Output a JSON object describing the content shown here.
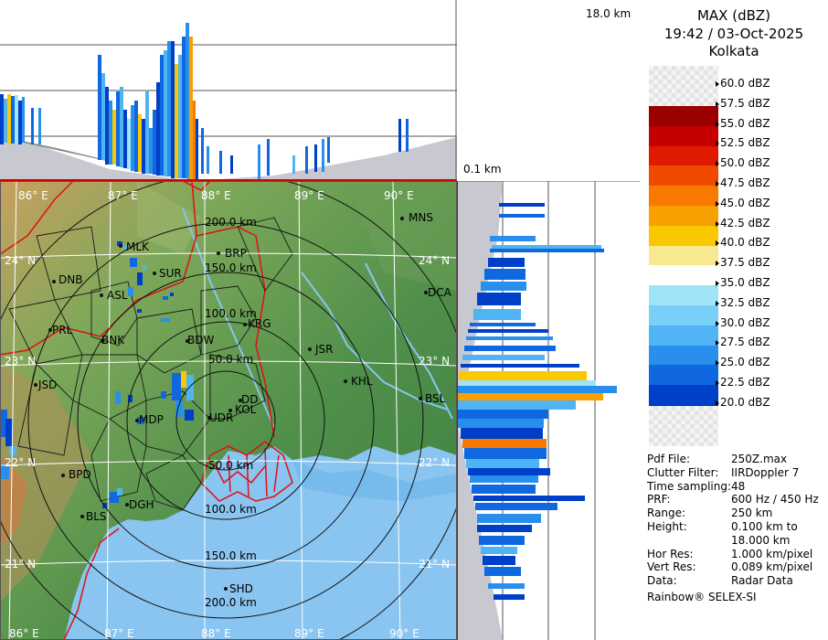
{
  "header": {
    "product": "MAX (dBZ)",
    "datetime": "19:42 / 03-Oct-2025",
    "station": "Kolkata"
  },
  "profile_labels": {
    "top_height": "18.0 km",
    "bottom_height": "0.1 km"
  },
  "colorbar": {
    "labels": [
      "60.0 dBZ",
      "57.5 dBZ",
      "55.0 dBZ",
      "52.5 dBZ",
      "50.0 dBZ",
      "47.5 dBZ",
      "45.0 dBZ",
      "42.5 dBZ",
      "40.0 dBZ",
      "37.5 dBZ",
      "35.0 dBZ",
      "32.5 dBZ",
      "30.0 dBZ",
      "27.5 dBZ",
      "25.0 dBZ",
      "22.5 dBZ",
      "20.0 dBZ"
    ],
    "colors": [
      "#9a0000",
      "#c40000",
      "#e01a00",
      "#f04a00",
      "#f87800",
      "#f8a000",
      "#f8c800",
      "#f8e890",
      "#ffffff",
      "#a0e4f8",
      "#78d0f8",
      "#50b4f4",
      "#2890ec",
      "#1068e0",
      "#0040c8",
      "#002c9c",
      "#00207c"
    ]
  },
  "meta": {
    "rows": [
      {
        "key": "Pdf File:",
        "value": "250Z.max"
      },
      {
        "key": "Clutter Filter:",
        "value": "IIRDoppler 7"
      },
      {
        "key": "Time sampling:",
        "value": "48"
      },
      {
        "key": "PRF:",
        "value": "600 Hz / 450 Hz"
      },
      {
        "key": "Range:",
        "value": "250 km"
      },
      {
        "key": "Height:",
        "value": "0.100 km to"
      },
      {
        "key": "",
        "value": "18.000 km"
      },
      {
        "key": "Hor Res:",
        "value": "1.000 km/pixel"
      },
      {
        "key": "Vert Res:",
        "value": "0.089 km/pixel"
      },
      {
        "key": "Data:",
        "value": "Radar Data"
      }
    ],
    "footer": "Rainbow® SELEX-SI"
  },
  "map": {
    "lon_labels_top": [
      "86° E",
      "87° E",
      "88° E",
      "89° E",
      "90° E"
    ],
    "lon_labels_bottom": [
      "86° E",
      "87° E",
      "88° E",
      "89° E",
      "90° E"
    ],
    "lat_labels": [
      "24° N",
      "23° N",
      "22° N",
      "21° N"
    ],
    "lat_labels_right": [
      "24° N",
      "23° N",
      "22° N",
      "21° N"
    ],
    "range_rings": [
      "50.0 km",
      "100.0 km",
      "150.0 km",
      "200.0 km"
    ],
    "range_rings_south": [
      "50.0 km",
      "100.0 km",
      "150.0 km",
      "200.0 km"
    ],
    "cities": [
      "MNS",
      "BRP",
      "DCA",
      "DNB",
      "ASL",
      "SUR",
      "MLK",
      "PRL",
      "BNK",
      "KRG",
      "BDW",
      "JSR",
      "KHL",
      "JSD",
      "BSL",
      "DD",
      "KOL",
      "UDR",
      "MDP",
      "BPD",
      "DGH",
      "BLS",
      "SHD"
    ]
  }
}
